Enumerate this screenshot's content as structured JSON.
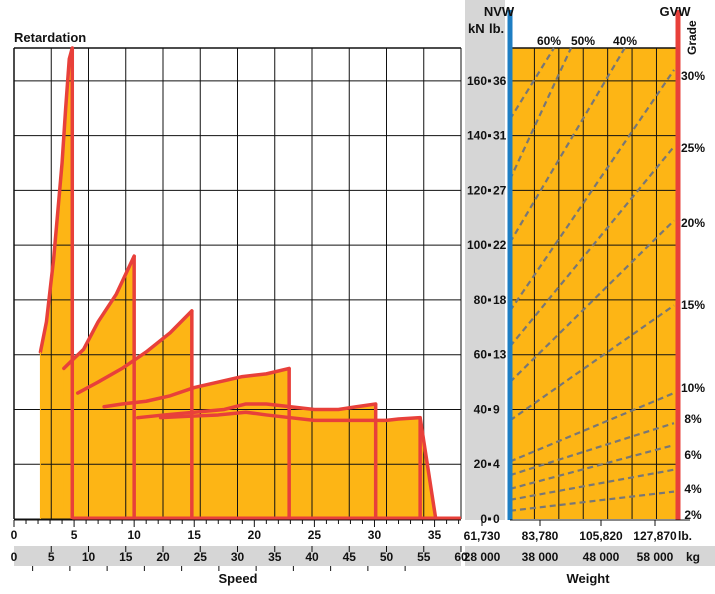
{
  "chart_data": [
    {
      "type": "area",
      "title": "Retardation",
      "xlabel": "Speed",
      "y_unit_label": "kN",
      "y_unit_label_secondary": "lb.",
      "x_axis_top": {
        "ticks": [
          "0",
          "5",
          "10",
          "15",
          "20",
          "25",
          "30",
          "35"
        ],
        "range": [
          0,
          37.2
        ]
      },
      "x_axis_bottom": {
        "ticks": [
          "0",
          "5",
          "10",
          "15",
          "20",
          "25",
          "30",
          "35",
          "40",
          "45",
          "50",
          "55",
          "60"
        ],
        "range": [
          0,
          60
        ]
      },
      "ylim": [
        0,
        172
      ],
      "y_ticks_kn": [
        "0",
        "20",
        "40",
        "60",
        "80",
        "100",
        "120",
        "140",
        "160"
      ],
      "y_ticks_lb": [
        "0",
        "4",
        "9",
        "13",
        "18",
        "22",
        "27",
        "31",
        "36"
      ],
      "grid": true,
      "fill_color": "#FDB515",
      "line_color": "#E8403A",
      "gear_curves": [
        {
          "x": [
            2.2,
            2.7,
            3.3,
            4.0,
            4.3,
            4.6,
            4.85
          ],
          "y": [
            61,
            72,
            95,
            130,
            150,
            168,
            172
          ]
        },
        {
          "x": [
            4.15,
            4.85,
            5.8,
            7.0,
            8.5,
            10.0
          ],
          "y": [
            55,
            58,
            62,
            72,
            82,
            96
          ]
        },
        {
          "x": [
            5.3,
            7.0,
            9.0,
            11.0,
            13.0,
            14.8
          ],
          "y": [
            46,
            50,
            55,
            61,
            68,
            76
          ]
        },
        {
          "x": [
            7.5,
            9.0,
            11.0,
            13.0,
            15.0,
            17.0,
            19.0,
            21.0,
            22.9
          ],
          "y": [
            41,
            42,
            43,
            45,
            48,
            50,
            52,
            53,
            55
          ]
        },
        {
          "x": [
            10.3,
            12.5,
            15.0,
            17.5,
            19.3,
            21.0,
            23.0,
            25.0,
            27.0,
            28.5,
            30.1
          ],
          "y": [
            37,
            38,
            39,
            40,
            42,
            42,
            41,
            40,
            40,
            41,
            42
          ]
        },
        {
          "x": [
            12.2,
            14.5,
            17.0,
            19.3,
            21.0,
            23.0,
            25.0,
            27.0,
            29.0,
            31.0,
            32.0,
            33.8
          ],
          "y": [
            37,
            37.5,
            38,
            39,
            38,
            37,
            36,
            36,
            36,
            36,
            36.5,
            37
          ]
        }
      ],
      "gear_drops_x": [
        4.85,
        10.0,
        14.8,
        22.9,
        30.1,
        33.8,
        35.1
      ],
      "bottom_line_x_end": 37.2
    },
    {
      "type": "line",
      "xlabel": "Weight",
      "x_unit_labels": [
        "lb.",
        "kg"
      ],
      "x_ticks_lb": [
        "61,730",
        "83,780",
        "105,820",
        "127,870"
      ],
      "x_ticks_kg": [
        "28 000",
        "38 000",
        "48 000",
        "58 000"
      ],
      "xlim_kg": [
        28000,
        62000
      ],
      "markers": {
        "left": "NVW",
        "right": "GVW"
      },
      "grade_label": "Grade",
      "grade_lines": [
        {
          "name": "2%",
          "y_at_nvw": 3,
          "y_at_gvw": 10
        },
        {
          "name": "4%",
          "y_at_nvw": 7,
          "y_at_gvw": 18
        },
        {
          "name": "6%",
          "y_at_nvw": 11,
          "y_at_gvw": 27
        },
        {
          "name": "8%",
          "y_at_nvw": 16,
          "y_at_gvw": 35
        },
        {
          "name": "10%",
          "y_at_nvw": 21,
          "y_at_gvw": 46
        },
        {
          "name": "15%",
          "y_at_nvw": 36,
          "y_at_gvw": 78
        },
        {
          "name": "20%",
          "y_at_nvw": 50,
          "y_at_gvw": 109
        },
        {
          "name": "25%",
          "y_at_nvw": 63,
          "y_at_gvw": 136
        },
        {
          "name": "30%",
          "y_at_nvw": 76,
          "y_at_gvw": 164
        },
        {
          "name": "40%",
          "y_at_nvw": 101,
          "y_at_gvw": 172,
          "x_end_kg": 51500
        },
        {
          "name": "50%",
          "y_at_nvw": 124,
          "y_at_gvw": 172,
          "x_end_kg": 40500
        },
        {
          "name": "60%",
          "y_at_nvw": 146,
          "y_at_gvw": 172,
          "x_end_kg": 37000
        }
      ],
      "top_grade_labels": [
        "60%",
        "50%",
        "40%"
      ],
      "right_grade_labels": [
        "30%",
        "25%",
        "20%",
        "15%",
        "10%",
        "8%",
        "6%",
        "4%",
        "2%"
      ],
      "nvw_color": "#1E7EC3",
      "gvw_color": "#E8403A"
    }
  ]
}
